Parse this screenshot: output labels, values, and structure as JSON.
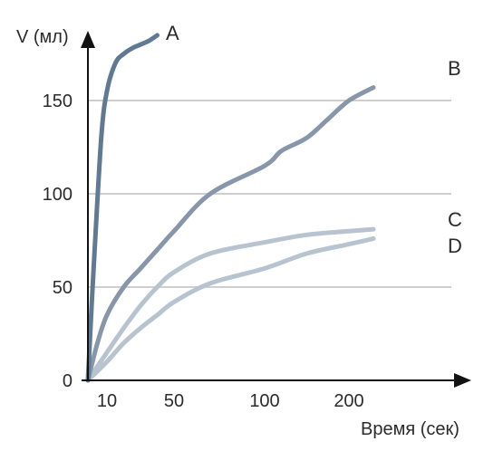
{
  "chart_data": {
    "type": "line",
    "ylabel": "V (мл)",
    "xlabel": "Время (сек)",
    "x_ticks": [
      "10",
      "50",
      "100",
      "200"
    ],
    "y_ticks": [
      0,
      50,
      100,
      150
    ],
    "ylim": [
      0,
      190
    ],
    "grid": true,
    "series": [
      {
        "name": "A",
        "color": "#5f7a92",
        "points": [
          [
            0,
            0
          ],
          [
            3,
            60
          ],
          [
            7,
            130
          ],
          [
            10,
            155
          ],
          [
            15,
            170
          ],
          [
            20,
            175
          ],
          [
            25,
            178
          ],
          [
            30,
            180
          ],
          [
            35,
            182
          ],
          [
            40,
            185
          ]
        ]
      },
      {
        "name": "B",
        "color": "#8896aa",
        "points": [
          [
            0,
            0
          ],
          [
            5,
            20
          ],
          [
            10,
            35
          ],
          [
            20,
            50
          ],
          [
            30,
            60
          ],
          [
            40,
            70
          ],
          [
            50,
            80
          ],
          [
            70,
            100
          ],
          [
            100,
            115
          ],
          [
            120,
            123
          ],
          [
            150,
            130
          ],
          [
            175,
            140
          ],
          [
            200,
            150
          ],
          [
            230,
            157
          ]
        ]
      },
      {
        "name": "C",
        "color": "#b8c3d0",
        "points": [
          [
            0,
            0
          ],
          [
            10,
            15
          ],
          [
            20,
            28
          ],
          [
            30,
            40
          ],
          [
            40,
            50
          ],
          [
            50,
            58
          ],
          [
            70,
            68
          ],
          [
            100,
            74
          ],
          [
            150,
            78
          ],
          [
            200,
            80
          ],
          [
            230,
            81
          ]
        ]
      },
      {
        "name": "D",
        "color": "#b8c3d0",
        "points": [
          [
            0,
            0
          ],
          [
            10,
            10
          ],
          [
            20,
            20
          ],
          [
            30,
            28
          ],
          [
            40,
            35
          ],
          [
            50,
            42
          ],
          [
            70,
            52
          ],
          [
            100,
            60
          ],
          [
            150,
            68
          ],
          [
            200,
            73
          ],
          [
            230,
            76
          ]
        ]
      }
    ]
  }
}
